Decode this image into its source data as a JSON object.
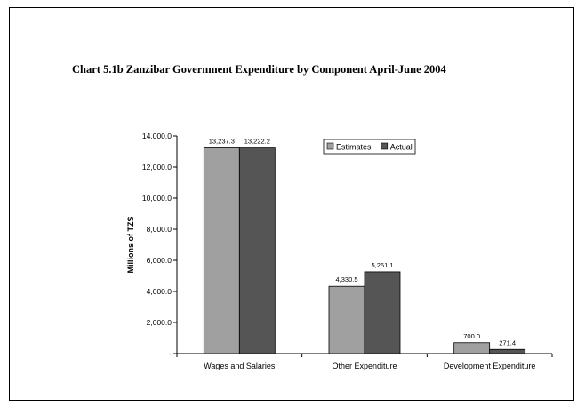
{
  "chart_data": {
    "type": "bar",
    "title": "Chart 5.1b Zanzibar Government Expenditure by Component April-June 2004",
    "xlabel": "",
    "ylabel": "Millions of TZS",
    "categories": [
      "Wages and Salaries",
      "Other Expenditure",
      "Development Expenditure"
    ],
    "series": [
      {
        "name": "Estimates",
        "values": [
          13237.3,
          4330.5,
          700.0
        ],
        "labels": [
          "13,237.3",
          "4,330.5",
          "700.0"
        ],
        "color": "#a0a0a0"
      },
      {
        "name": "Actual",
        "values": [
          13222.2,
          5261.1,
          271.4
        ],
        "labels": [
          "13,222.2",
          "5,261.1",
          "271.4"
        ],
        "color": "#555555"
      }
    ],
    "ylim": [
      0,
      14000
    ],
    "yticks": [
      0,
      2000,
      4000,
      6000,
      8000,
      10000,
      12000,
      14000
    ],
    "ytick_labels": [
      "-",
      "2,000.0",
      "4,000.0",
      "6,000.0",
      "8,000.0",
      "10,000.0",
      "12,000.0",
      "14,000.0"
    ],
    "grid": false,
    "legend_position": "top-right"
  }
}
